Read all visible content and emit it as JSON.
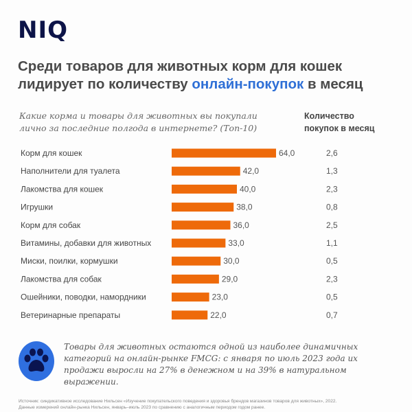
{
  "logo": "NIQ",
  "title": {
    "line1": "Среди товаров для животных корм для кошек",
    "line2_pre": "лидирует по количеству ",
    "line2_highlight": "онлайн-покупок",
    "line2_post": " в месяц"
  },
  "question": "Какие корма и товары для животных вы покупали лично за последние полгода в интернете? (Топ-10)",
  "right_column_header": "Количество покупок в месяц",
  "chart_data": {
    "type": "bar",
    "orientation": "horizontal",
    "title": "",
    "categories": [
      "Корм для кошек",
      "Наполнители для туалета",
      "Лакомства для кошек",
      "Игрушки",
      "Корм для собак",
      "Витамины, добавки для животных",
      "Миски, поилки, кормушки",
      "Лакомства для собак",
      "Ошейники, поводки, намордники",
      "Ветеринарные препараты"
    ],
    "values": [
      64.0,
      42.0,
      40.0,
      38.0,
      36.0,
      33.0,
      30.0,
      29.0,
      23.0,
      22.0
    ],
    "value_labels": [
      "64,0",
      "42,0",
      "40,0",
      "38,0",
      "36,0",
      "33,0",
      "30,0",
      "29,0",
      "23,0",
      "22,0"
    ],
    "purchases_per_month": [
      "2,6",
      "1,3",
      "2,3",
      "0,8",
      "2,5",
      "1,1",
      "0,5",
      "2,3",
      "0,5",
      "0,7"
    ],
    "bar_color": "#ee6a0a",
    "grid": false,
    "axes_visible": false
  },
  "note": "Товары для животных остаются одной из наиболее динамичных категорий на онлайн-рынке FMCG: с января по июль 2023 года их продажи выросли на 27% в денежном и на 39% в натуральном выражении.",
  "source": {
    "line1": "Источник: синдикативное исследование Нильсен «Изучение покупательского поведения и здоровья брендов магазинов товаров для животных», 2022.",
    "line2": "Данные измерений онлайн-рынка Нильсен, январь–июль 2023 по сравнению с аналогичным периодом годом ранее."
  },
  "colors": {
    "accent": "#2e6fd6",
    "logo": "#0d1448",
    "paw_circle": "#2f6fe0",
    "paw": "#0a1450"
  },
  "icons": {
    "note": "paw-icon"
  }
}
